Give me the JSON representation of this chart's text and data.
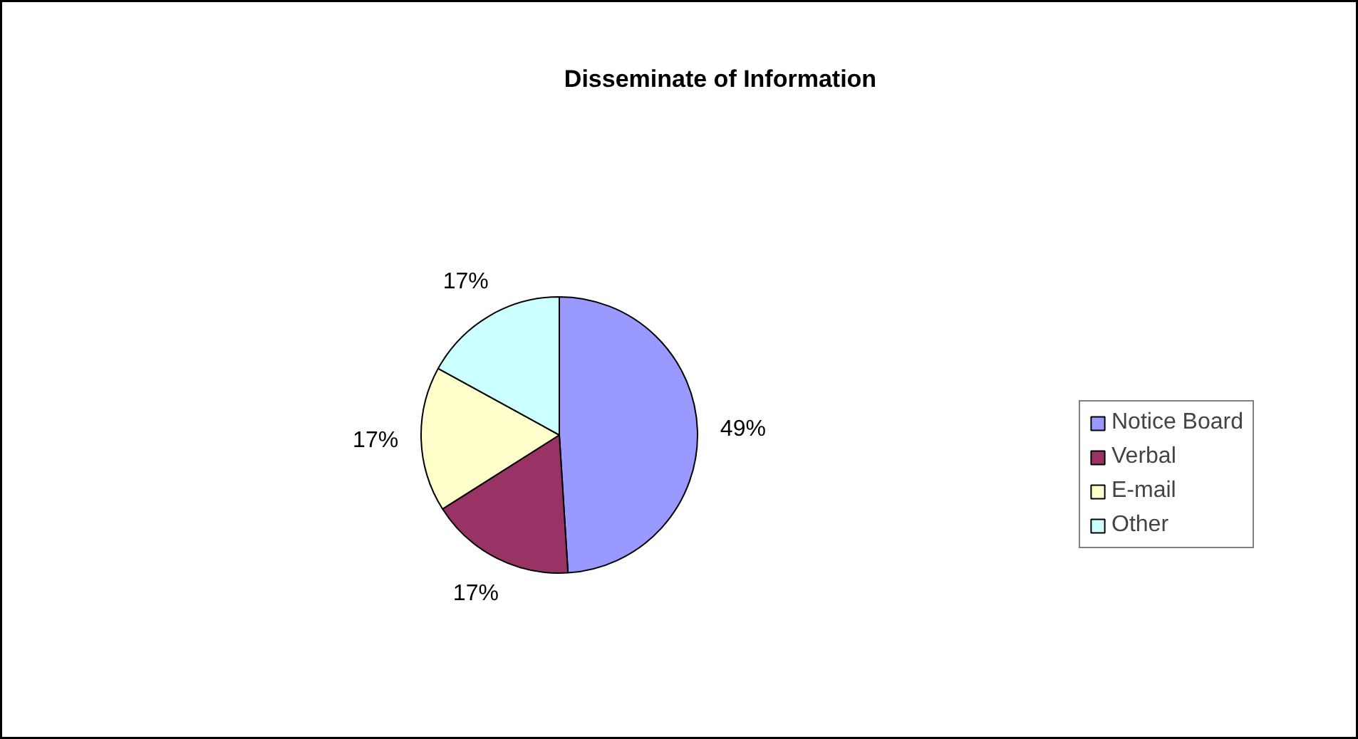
{
  "chart_data": {
    "type": "pie",
    "title": "Disseminate of Information",
    "categories": [
      "Notice Board",
      "Verbal",
      "E-mail",
      "Other"
    ],
    "values": [
      49,
      17,
      17,
      17
    ],
    "colors": [
      "#9999ff",
      "#993366",
      "#ffffcc",
      "#ccffff"
    ],
    "value_labels": [
      "49%",
      "17%",
      "17%",
      "17%"
    ],
    "legend": "right"
  }
}
